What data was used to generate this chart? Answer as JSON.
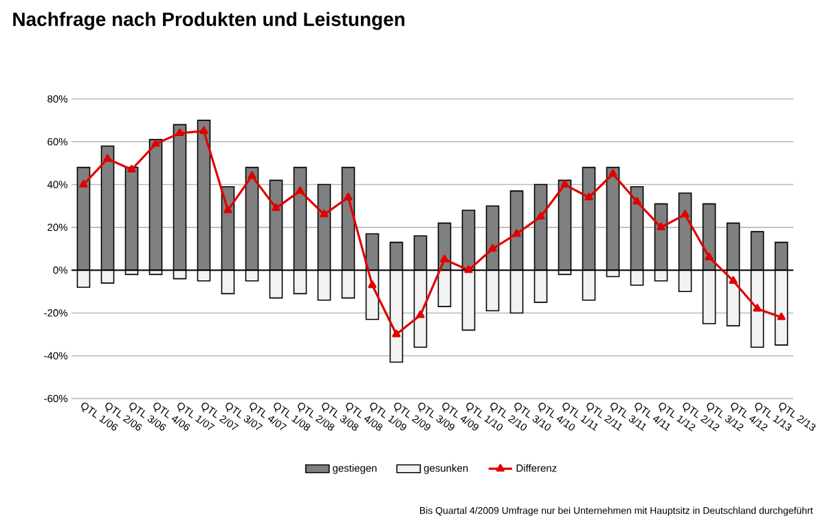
{
  "chart_data": {
    "type": "bar",
    "title": "Nachfrage nach Produkten und Leistungen",
    "categories": [
      "QTL 1/06",
      "QTL 2/06",
      "QTL 3/06",
      "QTL 4/06",
      "QTL 1/07",
      "QTL 2/07",
      "QTL 3/07",
      "QTL 4/07",
      "QTL 1/08",
      "QTL 2/08",
      "QTL 3/08",
      "QTL 4/08",
      "QTL 1/09",
      "QTL 2/09",
      "QTL 3/09",
      "QTL 4/09",
      "QTL 1/10",
      "QTL 2/10",
      "QTL 3/10",
      "QTL 4/10",
      "QTL 1/11",
      "QTL 2/11",
      "QTL 3/11",
      "QTL 4/11",
      "QTL 1/12",
      "QTL 2/12",
      "QTL 3/12",
      "QTL 4/12",
      "QTL 1/13",
      "QTL 2/13"
    ],
    "series": [
      {
        "name": "gestiegen",
        "color": "#808080",
        "values": [
          48,
          58,
          48,
          61,
          68,
          70,
          39,
          48,
          42,
          48,
          40,
          48,
          17,
          13,
          16,
          22,
          28,
          30,
          37,
          40,
          42,
          48,
          48,
          39,
          31,
          36,
          31,
          22,
          18,
          13
        ]
      },
      {
        "name": "gesunken",
        "color": "#f2f2f2",
        "values": [
          -8,
          -6,
          -2,
          -2,
          -4,
          -5,
          -11,
          -5,
          -13,
          -11,
          -14,
          -13,
          -23,
          -43,
          -36,
          -17,
          -28,
          -19,
          -20,
          -15,
          -2,
          -14,
          -3,
          -7,
          -5,
          -10,
          -25,
          -26,
          -36,
          -35
        ]
      },
      {
        "name": "Differenz",
        "type": "line",
        "color": "#e00000",
        "marker": "triangle",
        "values": [
          40,
          52,
          47,
          59,
          64,
          65,
          28,
          44,
          29,
          37,
          26,
          34,
          -7,
          -30,
          -21,
          5,
          0,
          10,
          17,
          25,
          40,
          34,
          45,
          32,
          20,
          26,
          6,
          -5,
          -18,
          -22
        ]
      }
    ],
    "stacked": true,
    "ylim": [
      -60,
      80
    ],
    "yticks": [
      {
        "value": -60,
        "label": "-60%"
      },
      {
        "value": -40,
        "label": "-40%"
      },
      {
        "value": -20,
        "label": "-20%"
      },
      {
        "value": 0,
        "label": "0%"
      },
      {
        "value": 20,
        "label": "20%"
      },
      {
        "value": 40,
        "label": "40%"
      },
      {
        "value": 60,
        "label": "60%"
      },
      {
        "value": 80,
        "label": "80%"
      }
    ],
    "grid": "y",
    "legend": "bottom",
    "annotations": [
      "Bis Quartal 4/2009 Umfrage nur bei Unternehmen mit Hauptsitz in Deutschland durchgeführt"
    ]
  }
}
